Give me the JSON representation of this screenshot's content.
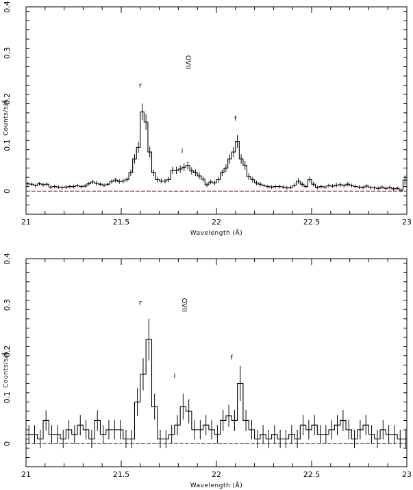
{
  "chart_data": [
    {
      "type": "line",
      "style": "histogram-step-with-error-bars",
      "xlabel": "Wavelength (Å)",
      "ylabel": "Counts/s/Å",
      "xlim": [
        21,
        23
      ],
      "ylim": [
        -0.05,
        0.4
      ],
      "xticks": [
        "21",
        "21.5",
        "22",
        "22.5",
        "23"
      ],
      "yticks": [
        "0",
        "0.1",
        "0.2",
        "0.3",
        "0.4"
      ],
      "grid": false,
      "bin_width": 0.02,
      "zero_line_color": "#cc0044",
      "annotations": [
        {
          "text": "OVII",
          "x": 21.84,
          "y": 0.28,
          "vertical": true
        },
        {
          "text": "r",
          "x": 21.6,
          "y": 0.225
        },
        {
          "text": "i",
          "x": 21.82,
          "y": 0.083
        },
        {
          "text": "f",
          "x": 22.1,
          "y": 0.153
        }
      ],
      "series": [
        {
          "x": [
            21.0,
            21.02,
            21.04,
            21.06,
            21.08,
            21.1,
            21.12,
            21.14,
            21.16,
            21.18,
            21.2,
            21.22,
            21.24,
            21.26,
            21.28,
            21.3,
            21.32,
            21.34,
            21.36,
            21.38,
            21.4,
            21.42,
            21.44,
            21.46,
            21.48,
            21.5,
            21.52,
            21.54,
            21.56,
            21.58,
            21.6,
            21.62,
            21.64,
            21.66,
            21.68,
            21.7,
            21.72,
            21.74,
            21.76,
            21.78,
            21.8,
            21.82,
            21.84,
            21.86,
            21.88,
            21.9,
            21.92,
            21.94,
            21.96,
            21.98,
            22.0,
            22.02,
            22.04,
            22.06,
            22.08,
            22.1,
            22.12,
            22.14,
            22.16,
            22.18,
            22.2,
            22.22,
            22.24,
            22.26,
            22.28,
            22.3,
            22.32,
            22.34,
            22.36,
            22.38,
            22.4,
            22.42,
            22.44,
            22.46,
            22.48,
            22.5,
            22.52,
            22.54,
            22.56,
            22.58,
            22.6,
            22.62,
            22.64,
            22.66,
            22.68,
            22.7,
            22.72,
            22.74,
            22.76,
            22.78,
            22.8,
            22.82,
            22.84,
            22.86,
            22.88,
            22.9,
            22.92,
            22.94,
            22.96,
            22.98
          ],
          "y": [
            0.016,
            0.015,
            0.012,
            0.016,
            0.014,
            0.015,
            0.009,
            0.01,
            0.009,
            0.008,
            0.009,
            0.01,
            0.01,
            0.012,
            0.01,
            0.011,
            0.016,
            0.02,
            0.017,
            0.015,
            0.013,
            0.015,
            0.021,
            0.024,
            0.021,
            0.022,
            0.025,
            0.04,
            0.07,
            0.095,
            0.172,
            0.15,
            0.085,
            0.04,
            0.025,
            0.022,
            0.022,
            0.025,
            0.045,
            0.045,
            0.048,
            0.052,
            0.056,
            0.044,
            0.04,
            0.033,
            0.026,
            0.014,
            0.02,
            0.018,
            0.025,
            0.04,
            0.05,
            0.07,
            0.085,
            0.108,
            0.07,
            0.056,
            0.032,
            0.025,
            0.018,
            0.015,
            0.012,
            0.01,
            0.009,
            0.01,
            0.01,
            0.009,
            0.007,
            0.008,
            0.013,
            0.022,
            0.015,
            0.01,
            0.025,
            0.015,
            0.008,
            0.01,
            0.009,
            0.012,
            0.011,
            0.013,
            0.014,
            0.012,
            0.015,
            0.012,
            0.01,
            0.009,
            0.008,
            0.011,
            0.008,
            0.007,
            0.006,
            0.009,
            0.006,
            0.008,
            0.005,
            0.006,
            0.002,
            0.024
          ],
          "err": [
            0.004,
            0.004,
            0.004,
            0.004,
            0.004,
            0.004,
            0.004,
            0.004,
            0.004,
            0.004,
            0.004,
            0.004,
            0.004,
            0.004,
            0.004,
            0.004,
            0.004,
            0.005,
            0.005,
            0.004,
            0.004,
            0.004,
            0.005,
            0.005,
            0.005,
            0.005,
            0.005,
            0.007,
            0.01,
            0.012,
            0.018,
            0.017,
            0.012,
            0.007,
            0.006,
            0.005,
            0.005,
            0.006,
            0.008,
            0.008,
            0.008,
            0.008,
            0.009,
            0.008,
            0.007,
            0.007,
            0.006,
            0.005,
            0.005,
            0.005,
            0.006,
            0.007,
            0.008,
            0.01,
            0.011,
            0.014,
            0.01,
            0.009,
            0.007,
            0.006,
            0.005,
            0.005,
            0.004,
            0.004,
            0.004,
            0.004,
            0.004,
            0.004,
            0.004,
            0.004,
            0.005,
            0.006,
            0.005,
            0.004,
            0.006,
            0.005,
            0.004,
            0.004,
            0.004,
            0.004,
            0.004,
            0.005,
            0.005,
            0.004,
            0.005,
            0.004,
            0.004,
            0.004,
            0.004,
            0.004,
            0.004,
            0.004,
            0.004,
            0.004,
            0.004,
            0.004,
            0.004,
            0.004,
            0.004,
            0.01
          ]
        }
      ]
    },
    {
      "type": "line",
      "style": "histogram-step-with-error-bars",
      "xlabel": "Wavelength (Å)",
      "ylabel": "Counts/s/Å",
      "xlim": [
        21,
        23
      ],
      "ylim": [
        -0.05,
        0.4
      ],
      "xticks": [
        "21",
        "21.5",
        "22",
        "22.5",
        "23"
      ],
      "yticks": [
        "0",
        "0.1",
        "0.2",
        "0.3",
        "0.4"
      ],
      "grid": false,
      "bin_width": 0.03,
      "zero_line_color": "#cc0044",
      "annotations": [
        {
          "text": "OVII",
          "x": 21.82,
          "y": 0.3,
          "vertical": true
        },
        {
          "text": "r",
          "x": 21.6,
          "y": 0.3
        },
        {
          "text": "i",
          "x": 21.78,
          "y": 0.142
        },
        {
          "text": "f",
          "x": 22.08,
          "y": 0.182
        }
      ],
      "series": [
        {
          "x": [
            21.0,
            21.03,
            21.06,
            21.09,
            21.12,
            21.15,
            21.18,
            21.21,
            21.24,
            21.27,
            21.3,
            21.33,
            21.36,
            21.39,
            21.42,
            21.45,
            21.48,
            21.51,
            21.54,
            21.57,
            21.6,
            21.63,
            21.66,
            21.69,
            21.72,
            21.75,
            21.78,
            21.81,
            21.84,
            21.87,
            21.9,
            21.93,
            21.96,
            21.99,
            22.02,
            22.05,
            22.08,
            22.11,
            22.14,
            22.17,
            22.2,
            22.23,
            22.26,
            22.29,
            22.32,
            22.35,
            22.38,
            22.41,
            22.44,
            22.47,
            22.5,
            22.53,
            22.56,
            22.59,
            22.62,
            22.65,
            22.68,
            22.71,
            22.74,
            22.77,
            22.8,
            22.83,
            22.86,
            22.89,
            22.92,
            22.95,
            22.98
          ],
          "y": [
            0.02,
            0.02,
            0.01,
            0.05,
            0.02,
            0.02,
            0.01,
            0.03,
            0.02,
            0.04,
            0.03,
            0.01,
            0.05,
            0.02,
            0.03,
            0.03,
            0.03,
            0.01,
            0.01,
            0.09,
            0.15,
            0.225,
            0.08,
            0.01,
            0.01,
            0.02,
            0.04,
            0.08,
            0.07,
            0.03,
            0.03,
            0.04,
            0.03,
            0.02,
            0.05,
            0.06,
            0.05,
            0.13,
            0.05,
            0.03,
            0.01,
            0.02,
            0.01,
            0.02,
            0.01,
            0.01,
            0.02,
            0.01,
            0.04,
            0.03,
            0.04,
            0.02,
            0.02,
            0.03,
            0.04,
            0.05,
            0.03,
            0.01,
            0.03,
            0.04,
            0.02,
            0.01,
            0.03,
            0.02,
            0.02,
            0.01,
            0.01
          ],
          "err": [
            0.02,
            0.02,
            0.02,
            0.022,
            0.02,
            0.02,
            0.02,
            0.021,
            0.02,
            0.022,
            0.021,
            0.02,
            0.022,
            0.02,
            0.021,
            0.021,
            0.021,
            0.02,
            0.02,
            0.03,
            0.035,
            0.045,
            0.028,
            0.02,
            0.02,
            0.02,
            0.022,
            0.028,
            0.026,
            0.021,
            0.021,
            0.022,
            0.021,
            0.02,
            0.023,
            0.024,
            0.023,
            0.038,
            0.023,
            0.021,
            0.02,
            0.02,
            0.02,
            0.02,
            0.02,
            0.02,
            0.02,
            0.02,
            0.022,
            0.021,
            0.022,
            0.02,
            0.02,
            0.021,
            0.022,
            0.023,
            0.021,
            0.02,
            0.021,
            0.022,
            0.02,
            0.02,
            0.021,
            0.02,
            0.02,
            0.02,
            0.02
          ]
        }
      ]
    }
  ]
}
